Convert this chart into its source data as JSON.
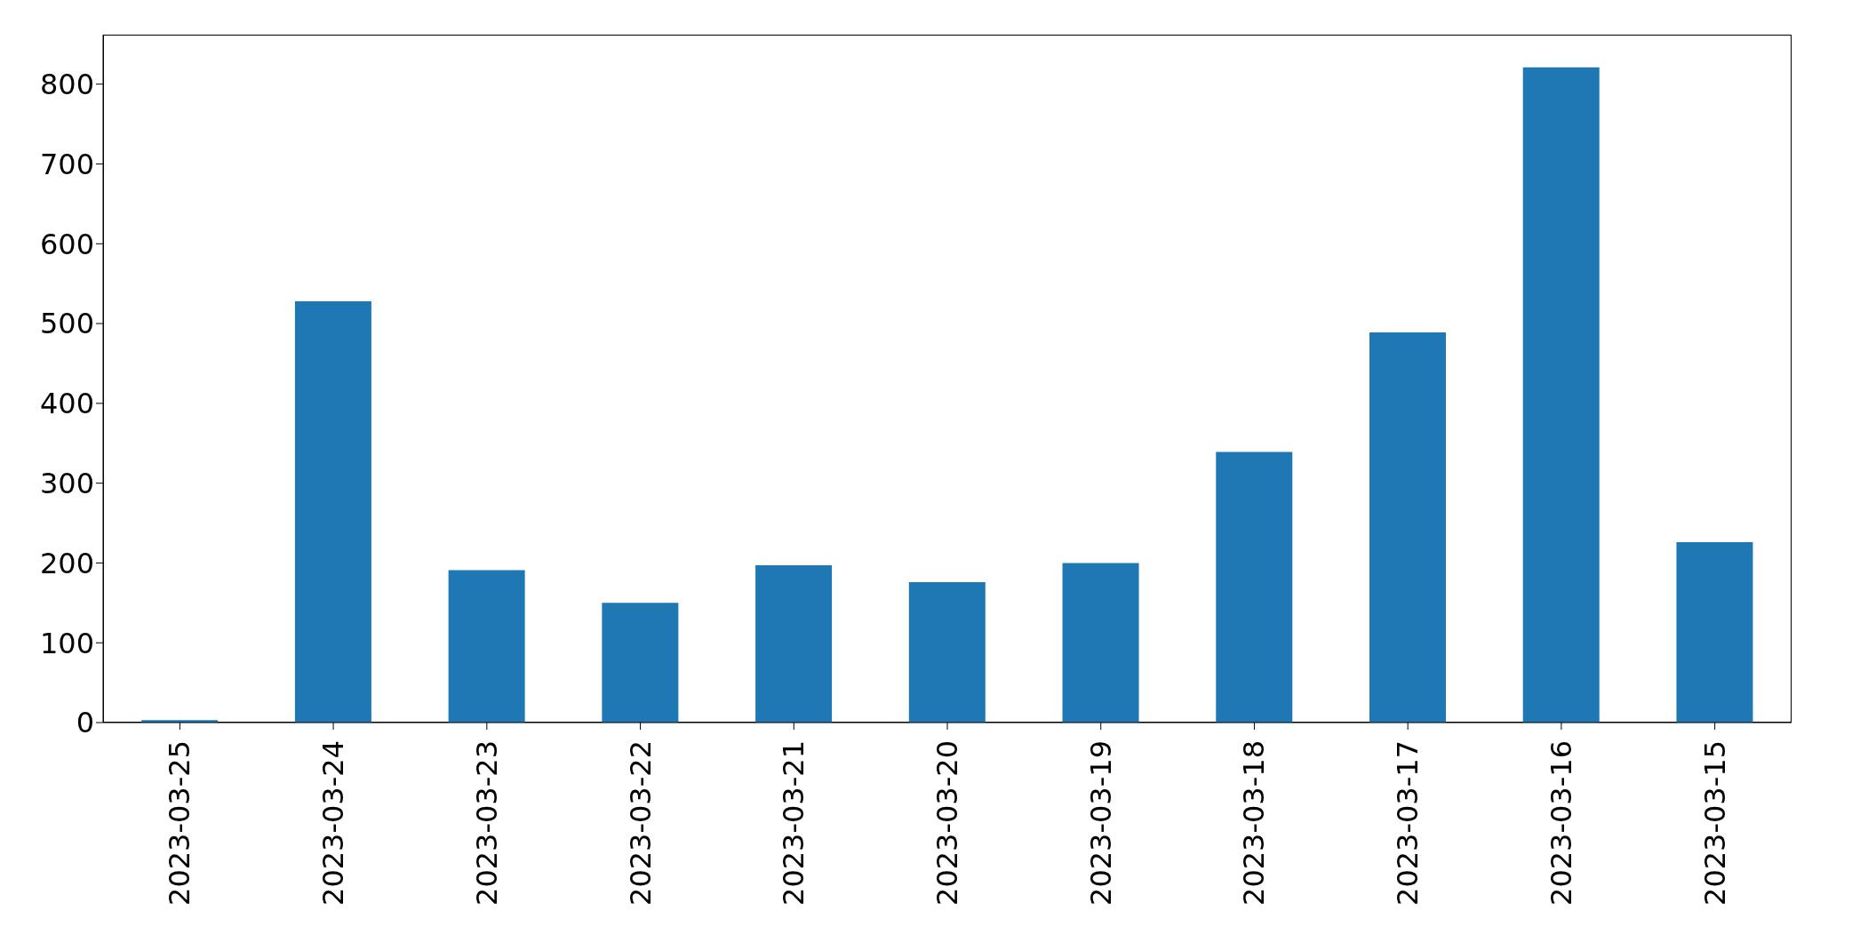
{
  "chart_data": {
    "type": "bar",
    "categories": [
      "2023-03-25",
      "2023-03-24",
      "2023-03-23",
      "2023-03-22",
      "2023-03-21",
      "2023-03-20",
      "2023-03-19",
      "2023-03-18",
      "2023-03-17",
      "2023-03-16",
      "2023-03-15"
    ],
    "values": [
      3,
      528,
      191,
      150,
      197,
      176,
      200,
      339,
      489,
      821,
      226
    ],
    "color": "#1f77b4",
    "ylim": [
      0,
      862
    ],
    "yticks": [
      0,
      100,
      200,
      300,
      400,
      500,
      600,
      700,
      800
    ],
    "grid": false
  }
}
